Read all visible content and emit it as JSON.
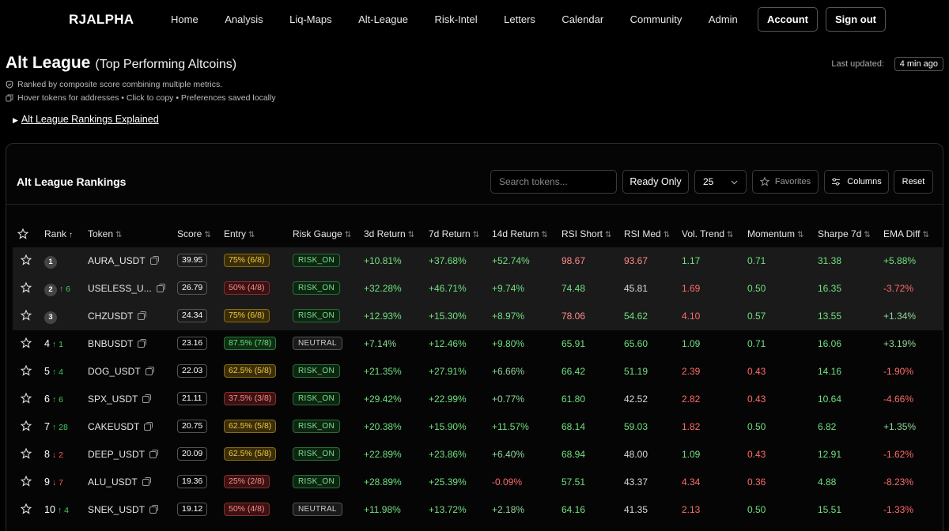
{
  "brand": "RJALPHA",
  "nav": [
    "Home",
    "Analysis",
    "Liq-Maps",
    "Alt-League",
    "Risk-Intel",
    "Letters",
    "Calendar",
    "Community",
    "Admin"
  ],
  "account_label": "Account",
  "signout_label": "Sign out",
  "page": {
    "title": "Alt League",
    "subtitle": "(Top Performing Altcoins)",
    "updated_label": "Last updated:",
    "updated_value": "4 min ago",
    "info1": "Ranked by composite score combining multiple metrics.",
    "info2": "Hover tokens for addresses • Click to copy • Preferences saved locally",
    "explained": "Alt League Rankings Explained"
  },
  "card": {
    "title": "Alt League Rankings",
    "search_placeholder": "Search tokens...",
    "ready_only": "Ready Only",
    "page_size": "25",
    "favorites": "Favorites",
    "columns": "Columns",
    "reset": "Reset"
  },
  "columns": [
    "Rank",
    "Token",
    "Score",
    "Entry",
    "Risk Gauge",
    "3d Return",
    "7d Return",
    "14d Return",
    "RSI Short",
    "RSI Med",
    "Vol. Trend",
    "Momentum",
    "Sharpe 7d",
    "EMA Diff"
  ],
  "rows": [
    {
      "rank": "1",
      "chg": "",
      "dir": "",
      "token": "AURA_USDT",
      "score": "39.95",
      "entry": "75% (6/8)",
      "entry_c": "e-yel",
      "risk": "RISK_ON",
      "risk_c": "r-on",
      "r3": "+10.81%",
      "r3c": "g",
      "r7": "+37.68%",
      "r7c": "g",
      "r14": "+52.74%",
      "r14c": "g",
      "rsis": "98.67",
      "rsisc": "lr",
      "rsim": "93.67",
      "rsimc": "lr",
      "vol": "1.17",
      "volc": "g",
      "mom": "0.71",
      "momc": "g",
      "sh": "31.38",
      "shc": "g",
      "ema": "+5.88%",
      "emac": "g"
    },
    {
      "rank": "2",
      "chg": "6",
      "dir": "up",
      "token": "USELESS_U...",
      "score": "26.79",
      "entry": "50% (4/8)",
      "entry_c": "e-red",
      "risk": "RISK_ON",
      "risk_c": "r-on",
      "r3": "+32.28%",
      "r3c": "g",
      "r7": "+46.71%",
      "r7c": "g",
      "r14": "+9.74%",
      "r14c": "g",
      "rsis": "74.48",
      "rsisc": "g",
      "rsim": "45.81",
      "rsimc": "w",
      "vol": "1.69",
      "volc": "r",
      "mom": "0.50",
      "momc": "g",
      "sh": "16.35",
      "shc": "g",
      "ema": "-3.72%",
      "emac": "r"
    },
    {
      "rank": "3",
      "chg": "",
      "dir": "",
      "token": "CHZUSDT",
      "score": "24.34",
      "entry": "75% (6/8)",
      "entry_c": "e-yel",
      "risk": "RISK_ON",
      "risk_c": "r-on",
      "r3": "+12.93%",
      "r3c": "g",
      "r7": "+15.30%",
      "r7c": "g",
      "r14": "+8.97%",
      "r14c": "g",
      "rsis": "78.06",
      "rsisc": "lr",
      "rsim": "54.62",
      "rsimc": "g",
      "vol": "4.10",
      "volc": "r",
      "mom": "0.57",
      "momc": "g",
      "sh": "13.55",
      "shc": "g",
      "ema": "+1.34%",
      "emac": "lg"
    },
    {
      "rank": "4",
      "chg": "1",
      "dir": "up",
      "token": "BNBUSDT",
      "score": "23.16",
      "entry": "87.5% (7/8)",
      "entry_c": "e-grn",
      "risk": "NEUTRAL",
      "risk_c": "r-neu",
      "r3": "+7.14%",
      "r3c": "lg",
      "r7": "+12.46%",
      "r7c": "g",
      "r14": "+9.80%",
      "r14c": "g",
      "rsis": "65.91",
      "rsisc": "g",
      "rsim": "65.60",
      "rsimc": "g",
      "vol": "1.09",
      "volc": "g",
      "mom": "0.71",
      "momc": "g",
      "sh": "16.06",
      "shc": "g",
      "ema": "+3.19%",
      "emac": "lg"
    },
    {
      "rank": "5",
      "chg": "4",
      "dir": "up",
      "token": "DOG_USDT",
      "score": "22.03",
      "entry": "62.5% (5/8)",
      "entry_c": "e-yel",
      "risk": "RISK_ON",
      "risk_c": "r-on",
      "r3": "+21.35%",
      "r3c": "g",
      "r7": "+27.91%",
      "r7c": "g",
      "r14": "+6.66%",
      "r14c": "lg",
      "rsis": "66.42",
      "rsisc": "g",
      "rsim": "51.19",
      "rsimc": "g",
      "vol": "2.39",
      "volc": "r",
      "mom": "0.43",
      "momc": "r",
      "sh": "14.16",
      "shc": "g",
      "ema": "-1.90%",
      "emac": "r"
    },
    {
      "rank": "6",
      "chg": "6",
      "dir": "up",
      "token": "SPX_USDT",
      "score": "21.11",
      "entry": "37.5% (3/8)",
      "entry_c": "e-red",
      "risk": "RISK_ON",
      "risk_c": "r-on",
      "r3": "+29.42%",
      "r3c": "g",
      "r7": "+22.99%",
      "r7c": "g",
      "r14": "+0.77%",
      "r14c": "lg",
      "rsis": "61.80",
      "rsisc": "g",
      "rsim": "42.52",
      "rsimc": "w",
      "vol": "2.82",
      "volc": "r",
      "mom": "0.43",
      "momc": "r",
      "sh": "10.64",
      "shc": "g",
      "ema": "-4.66%",
      "emac": "r"
    },
    {
      "rank": "7",
      "chg": "28",
      "dir": "up",
      "token": "CAKEUSDT",
      "score": "20.75",
      "entry": "62.5% (5/8)",
      "entry_c": "e-yel",
      "risk": "RISK_ON",
      "risk_c": "r-on",
      "r3": "+20.38%",
      "r3c": "g",
      "r7": "+15.90%",
      "r7c": "g",
      "r14": "+11.57%",
      "r14c": "g",
      "rsis": "68.14",
      "rsisc": "g",
      "rsim": "59.03",
      "rsimc": "g",
      "vol": "1.82",
      "volc": "r",
      "mom": "0.50",
      "momc": "g",
      "sh": "6.82",
      "shc": "g",
      "ema": "+1.35%",
      "emac": "lg"
    },
    {
      "rank": "8",
      "chg": "2",
      "dir": "down",
      "token": "DEEP_USDT",
      "score": "20.09",
      "entry": "62.5% (5/8)",
      "entry_c": "e-yel",
      "risk": "RISK_ON",
      "risk_c": "r-on",
      "r3": "+22.89%",
      "r3c": "g",
      "r7": "+23.86%",
      "r7c": "g",
      "r14": "+6.40%",
      "r14c": "lg",
      "rsis": "68.94",
      "rsisc": "g",
      "rsim": "48.00",
      "rsimc": "w",
      "vol": "1.09",
      "volc": "g",
      "mom": "0.43",
      "momc": "r",
      "sh": "12.91",
      "shc": "g",
      "ema": "-1.62%",
      "emac": "r"
    },
    {
      "rank": "9",
      "chg": "7",
      "dir": "down",
      "token": "ALU_USDT",
      "score": "19.36",
      "entry": "25% (2/8)",
      "entry_c": "e-red",
      "risk": "RISK_ON",
      "risk_c": "r-on",
      "r3": "+28.89%",
      "r3c": "g",
      "r7": "+25.39%",
      "r7c": "g",
      "r14": "-0.09%",
      "r14c": "r",
      "rsis": "57.51",
      "rsisc": "g",
      "rsim": "43.37",
      "rsimc": "w",
      "vol": "4.34",
      "volc": "r",
      "mom": "0.36",
      "momc": "r",
      "sh": "4.88",
      "shc": "g",
      "ema": "-8.23%",
      "emac": "r"
    },
    {
      "rank": "10",
      "chg": "4",
      "dir": "up",
      "token": "SNEK_USDT",
      "score": "19.12",
      "entry": "50% (4/8)",
      "entry_c": "e-red",
      "risk": "NEUTRAL",
      "risk_c": "r-neu",
      "r3": "+11.98%",
      "r3c": "g",
      "r7": "+13.72%",
      "r7c": "g",
      "r14": "+2.18%",
      "r14c": "lg",
      "rsis": "64.16",
      "rsisc": "g",
      "rsim": "41.35",
      "rsimc": "w",
      "vol": "2.13",
      "volc": "r",
      "mom": "0.50",
      "momc": "g",
      "sh": "15.51",
      "shc": "g",
      "ema": "-1.33%",
      "emac": "r"
    }
  ]
}
